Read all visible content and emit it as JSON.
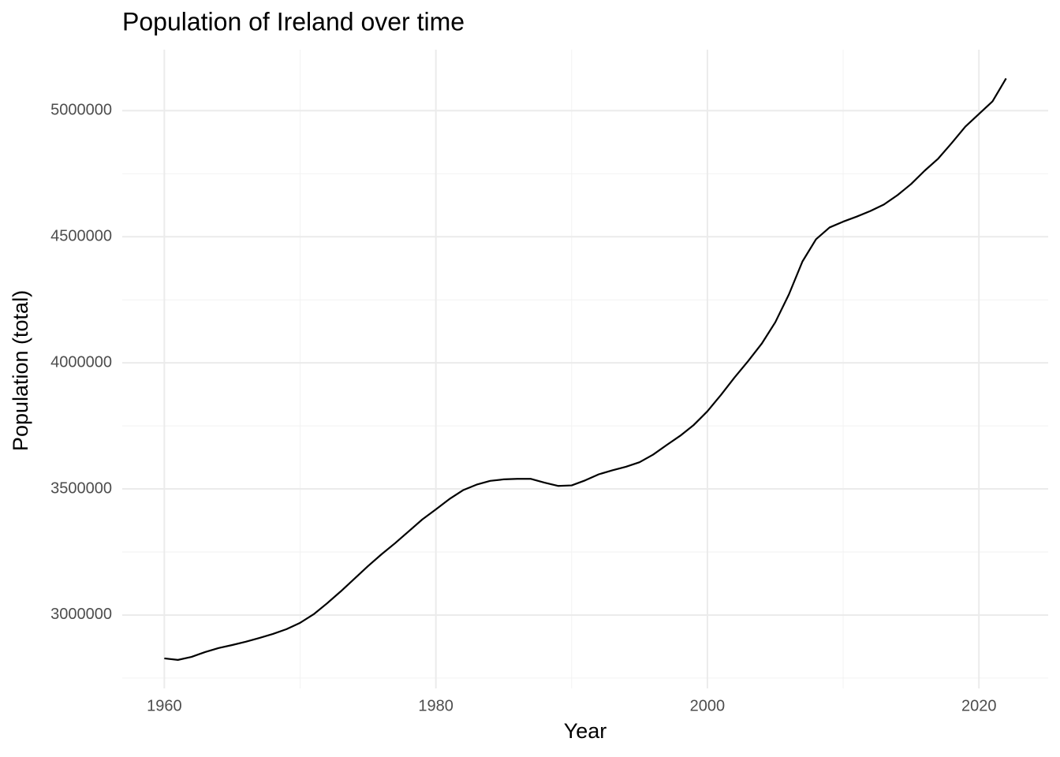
{
  "chart_data": {
    "type": "line",
    "title": "Population of Ireland over time",
    "x_label": "Year",
    "y_label": "Population (total)",
    "x": [
      1960,
      1961,
      1962,
      1963,
      1964,
      1965,
      1966,
      1967,
      1968,
      1969,
      1970,
      1971,
      1972,
      1973,
      1974,
      1975,
      1976,
      1977,
      1978,
      1979,
      1980,
      1981,
      1982,
      1983,
      1984,
      1985,
      1986,
      1987,
      1988,
      1989,
      1990,
      1991,
      1992,
      1993,
      1994,
      1995,
      1996,
      1997,
      1998,
      1999,
      2000,
      2001,
      2002,
      2003,
      2004,
      2005,
      2006,
      2007,
      2008,
      2009,
      2010,
      2011,
      2012,
      2013,
      2014,
      2015,
      2016,
      2017,
      2018,
      2019,
      2020,
      2021,
      2022
    ],
    "series": [
      {
        "color": "#000000",
        "values": [
          2828000,
          2822000,
          2834000,
          2853000,
          2869000,
          2881000,
          2894000,
          2909000,
          2925000,
          2944000,
          2969000,
          3003000,
          3047000,
          3094000,
          3144000,
          3194000,
          3241000,
          3285000,
          3332000,
          3379000,
          3419000,
          3460000,
          3495000,
          3517000,
          3532000,
          3538000,
          3540000,
          3540000,
          3525000,
          3512000,
          3514000,
          3534000,
          3558000,
          3574000,
          3588000,
          3606000,
          3636000,
          3674000,
          3711000,
          3754000,
          3808000,
          3873000,
          3942000,
          4007000,
          4076000,
          4161000,
          4271000,
          4402000,
          4490000,
          4537000,
          4560000,
          4580000,
          4602000,
          4628000,
          4665000,
          4709000,
          4762000,
          4810000,
          4872000,
          4937000,
          4987000,
          5037000,
          5128000
        ]
      }
    ],
    "xlim": [
      1956.9,
      2025.1
    ],
    "ylim": [
      2709000,
      5242000
    ],
    "xticks": [
      1960,
      1980,
      2000,
      2020
    ],
    "yticks": [
      3000000,
      3500000,
      4000000,
      4500000,
      5000000
    ],
    "minor_xticks": [
      1970,
      1990,
      2010
    ],
    "minor_yticks": [
      2750000,
      3250000,
      3750000,
      4250000,
      4750000
    ],
    "grid": true
  }
}
